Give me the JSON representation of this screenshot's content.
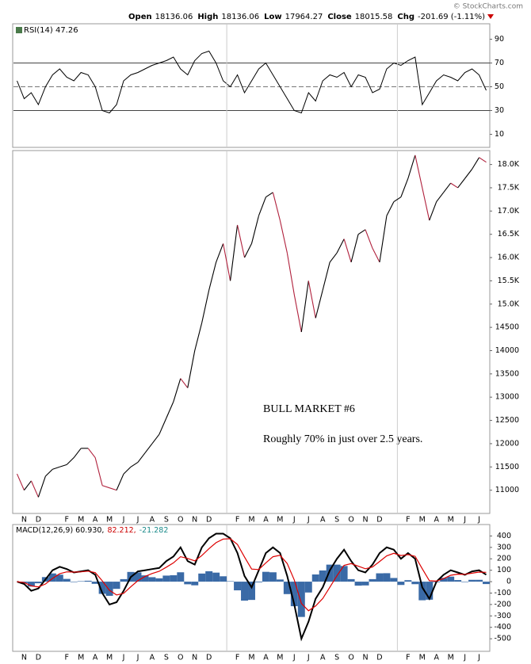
{
  "header": {
    "watermark": "© StockCharts.com",
    "fields": [
      {
        "label": "Open",
        "value": "18136.06"
      },
      {
        "label": "High",
        "value": "18136.06"
      },
      {
        "label": "Low",
        "value": "17964.27"
      },
      {
        "label": "Close",
        "value": "18015.58"
      },
      {
        "label": "Chg",
        "value": "-201.69 (-1.11%)"
      }
    ]
  },
  "chart_data": [
    {
      "type": "line",
      "title": "RSI(14) 47.26",
      "ylim": [
        -1,
        103
      ],
      "yticks": [
        10,
        30,
        50,
        70,
        90
      ],
      "levels": [
        30,
        70
      ],
      "midline": 50,
      "grid": false,
      "series": [
        {
          "color": "#000000",
          "values": [
            55,
            40,
            45,
            35,
            50,
            60,
            65,
            58,
            55,
            62,
            60,
            50,
            30,
            28,
            35,
            55,
            60,
            62,
            65,
            68,
            70,
            72,
            75,
            65,
            60,
            72,
            78,
            80,
            70,
            55,
            50,
            60,
            45,
            55,
            65,
            70,
            60,
            50,
            40,
            30,
            28,
            45,
            38,
            55,
            60,
            58,
            62,
            50,
            60,
            58,
            45,
            48,
            65,
            70,
            68,
            72,
            75,
            35,
            45,
            55,
            60,
            58,
            55,
            62,
            65,
            60,
            47
          ]
        }
      ]
    },
    {
      "type": "line",
      "categories": [
        null,
        "N",
        null,
        "D",
        null,
        null,
        null,
        "F",
        null,
        "M",
        null,
        "A",
        null,
        "M",
        null,
        "J",
        null,
        "J",
        null,
        "A",
        null,
        "S",
        null,
        "O",
        null,
        "N",
        null,
        "D",
        null,
        null,
        null,
        "F",
        null,
        "M",
        null,
        "A",
        null,
        "M",
        null,
        "J",
        null,
        "J",
        null,
        "A",
        null,
        "S",
        null,
        "O",
        null,
        "N",
        null,
        "D",
        null,
        null,
        null,
        "F",
        null,
        "M",
        null,
        "A",
        null,
        "M",
        null,
        "J",
        null,
        "J",
        null
      ],
      "annotations": [
        "BULL MARKET #6",
        "Roughly 70% in just over 2.5 years."
      ],
      "ylim": [
        10500,
        18300
      ],
      "yticks": [
        11000,
        11500,
        12000,
        12500,
        13000,
        13500,
        14000,
        14500,
        {
          "value": 15000,
          "label": "15.0K"
        },
        {
          "value": 15500,
          "label": "15.5K"
        },
        {
          "value": 16000,
          "label": "16.0K"
        },
        {
          "value": 16500,
          "label": "16.5K"
        },
        {
          "value": 17000,
          "label": "17.0K"
        },
        {
          "value": 17500,
          "label": "17.5K"
        },
        {
          "value": 18000,
          "label": "18.0K"
        }
      ],
      "grid": false,
      "year_breaks": [
        30,
        54
      ],
      "down_color": "#b0203c",
      "series": [
        {
          "color": "#000000",
          "values": [
            11350,
            11000,
            11200,
            10850,
            11300,
            11450,
            11500,
            11550,
            11700,
            11900,
            11900,
            11700,
            11100,
            11050,
            11000,
            11350,
            11500,
            11600,
            11800,
            12000,
            12200,
            12550,
            12900,
            13400,
            13200,
            14000,
            14600,
            15300,
            15900,
            16300,
            15500,
            16700,
            16000,
            16300,
            16900,
            17300,
            17400,
            16800,
            16100,
            15200,
            14400,
            15500,
            14700,
            15300,
            15900,
            16100,
            16400,
            15900,
            16500,
            16600,
            16200,
            15900,
            16900,
            17200,
            17300,
            17700,
            18200,
            17500,
            16800,
            17200,
            17400,
            17600,
            17500,
            17700,
            17900,
            18150,
            18050
          ]
        }
      ]
    },
    {
      "type": "line",
      "categories": [
        null,
        "N",
        null,
        "D",
        null,
        null,
        null,
        "F",
        null,
        "M",
        null,
        "A",
        null,
        "M",
        null,
        "J",
        null,
        "J",
        null,
        "A",
        null,
        "S",
        null,
        "O",
        null,
        "N",
        null,
        "D",
        null,
        null,
        null,
        "F",
        null,
        "M",
        null,
        "A",
        null,
        "M",
        null,
        "J",
        null,
        "J",
        null,
        "A",
        null,
        "S",
        null,
        "O",
        null,
        "N",
        null,
        "D",
        null,
        null,
        null,
        "F",
        null,
        "M",
        null,
        "A",
        null,
        "M",
        null,
        "J",
        null,
        "J",
        null
      ],
      "legend": [
        {
          "text": "MACD(12,26,9) 60.930,",
          "color": "#000000"
        },
        {
          "text": "82.212,",
          "color": "#cc0000"
        },
        {
          "text": "-21.282",
          "color": "#1a8a8a"
        }
      ],
      "ylim": [
        -610,
        500
      ],
      "yticks": [
        400,
        300,
        200,
        100,
        0,
        -100,
        -200,
        -300,
        -400,
        -500
      ],
      "grid": false,
      "series": [
        {
          "type": "bar",
          "color": "#3a6aa6",
          "values": [
            0,
            -12,
            -43,
            -14,
            40,
            72,
            61,
            24,
            -4,
            4,
            8,
            -19,
            -107,
            -124,
            -63,
            22,
            85,
            81,
            55,
            39,
            29,
            53,
            56,
            82,
            -23,
            -32,
            71,
            91,
            79,
            47,
            4,
            -76,
            -166,
            -160,
            -6,
            86,
            82,
            19,
            -109,
            -215,
            -309,
            -95,
            63,
            98,
            149,
            149,
            137,
            22,
            -35,
            -33,
            22,
            73,
            74,
            32,
            -29,
            13,
            -22,
            -163,
            -158,
            -5,
            33,
            44,
            14,
            -4,
            16,
            16,
            -21
          ]
        },
        {
          "color": "#000000",
          "width": 2,
          "values": [
            0,
            -20,
            -80,
            -60,
            20,
            100,
            130,
            110,
            80,
            90,
            100,
            60,
            -100,
            -200,
            -180,
            -80,
            40,
            90,
            100,
            110,
            120,
            180,
            220,
            300,
            180,
            150,
            300,
            380,
            420,
            420,
            380,
            250,
            50,
            -50,
            100,
            250,
            300,
            250,
            50,
            -200,
            -500,
            -350,
            -150,
            -50,
            100,
            200,
            280,
            180,
            100,
            80,
            150,
            250,
            300,
            280,
            200,
            250,
            200,
            -50,
            -150,
            0,
            60,
            100,
            80,
            60,
            90,
            100,
            61
          ]
        },
        {
          "color": "#dd0000",
          "width": 1.2,
          "values": [
            0,
            -8,
            -37,
            -46,
            -20,
            28,
            69,
            86,
            84,
            86,
            92,
            79,
            7,
            -76,
            -117,
            -102,
            -45,
            9,
            45,
            71,
            91,
            127,
            164,
            218,
            203,
            182,
            229,
            289,
            341,
            373,
            376,
            326,
            216,
            110,
            106,
            164,
            218,
            231,
            159,
            15,
            -191,
            -255,
            -213,
            -148,
            -49,
            51,
            143,
            158,
            135,
            113,
            128,
            177,
            226,
            248,
            229,
            237,
            222,
            113,
            8,
            5,
            27,
            56,
            66,
            64,
            74,
            84,
            82
          ]
        }
      ]
    }
  ]
}
